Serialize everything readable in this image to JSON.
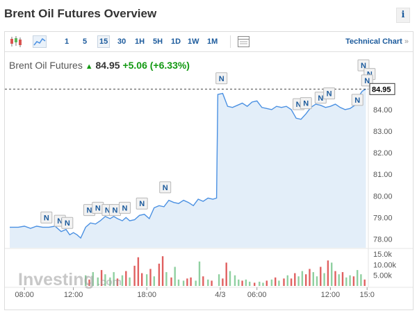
{
  "page_title": "Brent Oil Futures Overview",
  "info_label": "i",
  "toolbar": {
    "timeframes": [
      "1",
      "5",
      "15",
      "30",
      "1H",
      "5H",
      "1D",
      "1W",
      "1M"
    ],
    "active_timeframe": "15",
    "technical_chart_label": "Technical Chart",
    "technical_chart_arrow": "»"
  },
  "quote": {
    "name": "Brent Oil Futures",
    "price": "84.95",
    "change": "+5.06",
    "change_pct": "(+6.33%)"
  },
  "watermark": {
    "main": "Investing",
    "suffix": ".com"
  },
  "colors": {
    "line": "#4a90e2",
    "area": "#e3eef9",
    "up": "#8fd0a0",
    "down": "#e06060",
    "accent": "#1b5a9c"
  },
  "chart_data": {
    "type": "area",
    "y_axis": {
      "range": [
        77.6,
        85.7
      ],
      "ticks": [
        "78.00",
        "79.00",
        "80.00",
        "81.00",
        "82.00",
        "83.00",
        "84.00"
      ]
    },
    "last_price": 84.95,
    "last_price_label": "84.95",
    "x_labels": [
      {
        "label": "08:00",
        "t": 8
      },
      {
        "label": "12:00",
        "t": 12
      },
      {
        "label": "18:00",
        "t": 18
      },
      {
        "label": "4/3",
        "t": 24
      },
      {
        "label": "06:00",
        "t": 27
      },
      {
        "label": "12:00",
        "t": 33
      },
      {
        "label": "15:0",
        "t": 36
      }
    ],
    "price_series": [
      [
        6.8,
        78.55
      ],
      [
        7.5,
        78.55
      ],
      [
        8.0,
        78.6
      ],
      [
        8.5,
        78.5
      ],
      [
        9.0,
        78.6
      ],
      [
        9.5,
        78.55
      ],
      [
        10.0,
        78.55
      ],
      [
        10.5,
        78.6
      ],
      [
        11.0,
        78.35
      ],
      [
        11.4,
        78.45
      ],
      [
        11.7,
        78.2
      ],
      [
        12.0,
        78.3
      ],
      [
        12.3,
        78.2
      ],
      [
        12.6,
        78.05
      ],
      [
        13.0,
        78.55
      ],
      [
        13.4,
        78.75
      ],
      [
        13.8,
        78.7
      ],
      [
        14.2,
        78.85
      ],
      [
        14.6,
        79.05
      ],
      [
        15.0,
        78.95
      ],
      [
        15.3,
        79.05
      ],
      [
        15.6,
        78.95
      ],
      [
        16.0,
        78.85
      ],
      [
        16.3,
        79.0
      ],
      [
        16.6,
        78.85
      ],
      [
        17.0,
        78.9
      ],
      [
        17.4,
        79.1
      ],
      [
        17.8,
        79.15
      ],
      [
        18.2,
        78.95
      ],
      [
        18.6,
        79.45
      ],
      [
        19.0,
        79.55
      ],
      [
        19.4,
        79.5
      ],
      [
        19.8,
        79.8
      ],
      [
        20.2,
        79.7
      ],
      [
        20.6,
        79.65
      ],
      [
        21.0,
        79.8
      ],
      [
        21.4,
        79.7
      ],
      [
        21.8,
        79.55
      ],
      [
        22.2,
        79.85
      ],
      [
        22.6,
        79.75
      ],
      [
        23.0,
        79.9
      ],
      [
        23.4,
        79.85
      ],
      [
        23.7,
        79.9
      ],
      [
        23.8,
        84.7
      ],
      [
        24.2,
        84.75
      ],
      [
        24.6,
        84.15
      ],
      [
        25.0,
        84.1
      ],
      [
        25.4,
        84.2
      ],
      [
        25.8,
        84.3
      ],
      [
        26.2,
        84.15
      ],
      [
        26.6,
        84.35
      ],
      [
        27.0,
        84.4
      ],
      [
        27.4,
        84.1
      ],
      [
        27.8,
        84.05
      ],
      [
        28.2,
        84.0
      ],
      [
        28.6,
        84.15
      ],
      [
        29.0,
        84.1
      ],
      [
        29.4,
        84.15
      ],
      [
        29.8,
        84.0
      ],
      [
        30.2,
        83.6
      ],
      [
        30.6,
        83.55
      ],
      [
        31.0,
        83.8
      ],
      [
        31.4,
        84.1
      ],
      [
        31.8,
        84.25
      ],
      [
        32.2,
        84.2
      ],
      [
        32.6,
        84.1
      ],
      [
        33.0,
        84.15
      ],
      [
        33.4,
        84.25
      ],
      [
        33.8,
        84.1
      ],
      [
        34.2,
        84.0
      ],
      [
        34.6,
        84.05
      ],
      [
        35.0,
        84.2
      ],
      [
        35.3,
        84.6
      ],
      [
        35.6,
        84.85
      ],
      [
        35.9,
        84.95
      ]
    ],
    "volume_axis": {
      "range": [
        0,
        17000
      ],
      "ticks": [
        "15.0k",
        "10.00k",
        "5.00k"
      ],
      "tick_values": [
        15000,
        10000,
        5000
      ]
    },
    "volume_bars": [
      [
        13.0,
        5000,
        "up"
      ],
      [
        13.3,
        3000,
        "down"
      ],
      [
        13.6,
        6500,
        "up"
      ],
      [
        14.0,
        4000,
        "up"
      ],
      [
        14.3,
        7500,
        "down"
      ],
      [
        14.6,
        5500,
        "up"
      ],
      [
        15.0,
        4000,
        "up"
      ],
      [
        15.3,
        6500,
        "up"
      ],
      [
        15.6,
        3500,
        "down"
      ],
      [
        16.0,
        5000,
        "up"
      ],
      [
        16.3,
        7000,
        "down"
      ],
      [
        16.6,
        4000,
        "up"
      ],
      [
        17.0,
        9500,
        "down"
      ],
      [
        17.3,
        13500,
        "down"
      ],
      [
        17.6,
        6000,
        "down"
      ],
      [
        18.0,
        5500,
        "up"
      ],
      [
        18.3,
        8000,
        "down"
      ],
      [
        18.6,
        4500,
        "up"
      ],
      [
        19.0,
        10500,
        "down"
      ],
      [
        19.3,
        14000,
        "down"
      ],
      [
        19.6,
        6500,
        "up"
      ],
      [
        20.0,
        4000,
        "down"
      ],
      [
        20.3,
        9000,
        "up"
      ],
      [
        20.6,
        3000,
        "up"
      ],
      [
        21.0,
        2500,
        "up"
      ],
      [
        21.3,
        3500,
        "down"
      ],
      [
        21.6,
        4000,
        "down"
      ],
      [
        22.0,
        2500,
        "up"
      ],
      [
        22.3,
        11500,
        "up"
      ],
      [
        22.6,
        4500,
        "down"
      ],
      [
        23.0,
        3000,
        "up"
      ],
      [
        23.3,
        2500,
        "down"
      ],
      [
        23.9,
        5500,
        "up"
      ],
      [
        24.2,
        3500,
        "down"
      ],
      [
        24.5,
        11000,
        "down"
      ],
      [
        24.8,
        7000,
        "up"
      ],
      [
        25.2,
        5000,
        "up"
      ],
      [
        25.5,
        3000,
        "up"
      ],
      [
        25.8,
        2500,
        "down"
      ],
      [
        26.1,
        3000,
        "up"
      ],
      [
        26.4,
        2000,
        "up"
      ],
      [
        26.8,
        1500,
        "down"
      ],
      [
        27.2,
        2000,
        "up"
      ],
      [
        27.5,
        1500,
        "up"
      ],
      [
        27.8,
        2500,
        "down"
      ],
      [
        28.2,
        3000,
        "up"
      ],
      [
        28.5,
        4000,
        "down"
      ],
      [
        28.8,
        2500,
        "up"
      ],
      [
        29.2,
        3500,
        "down"
      ],
      [
        29.5,
        5000,
        "up"
      ],
      [
        29.8,
        3500,
        "down"
      ],
      [
        30.1,
        6000,
        "down"
      ],
      [
        30.4,
        4500,
        "up"
      ],
      [
        30.7,
        7000,
        "up"
      ],
      [
        31.0,
        5500,
        "down"
      ],
      [
        31.3,
        8000,
        "down"
      ],
      [
        31.6,
        6500,
        "up"
      ],
      [
        31.9,
        4500,
        "up"
      ],
      [
        32.2,
        9000,
        "down"
      ],
      [
        32.5,
        6000,
        "up"
      ],
      [
        32.8,
        12000,
        "down"
      ],
      [
        33.1,
        11000,
        "up"
      ],
      [
        33.4,
        7000,
        "down"
      ],
      [
        33.7,
        5500,
        "up"
      ],
      [
        34.0,
        6500,
        "down"
      ],
      [
        34.3,
        4000,
        "up"
      ],
      [
        34.6,
        5000,
        "up"
      ],
      [
        34.9,
        4500,
        "down"
      ],
      [
        35.2,
        7500,
        "up"
      ],
      [
        35.5,
        5500,
        "up"
      ],
      [
        35.8,
        3000,
        "down"
      ]
    ],
    "news_marker_label": "N",
    "news_markers": [
      [
        9.8,
        78.55
      ],
      [
        10.9,
        78.4
      ],
      [
        11.5,
        78.3
      ],
      [
        13.3,
        78.9
      ],
      [
        14.0,
        79.0
      ],
      [
        14.8,
        78.9
      ],
      [
        15.4,
        78.9
      ],
      [
        16.2,
        79.0
      ],
      [
        17.6,
        79.2
      ],
      [
        19.5,
        79.95
      ],
      [
        24.1,
        85.0
      ],
      [
        30.4,
        83.8
      ],
      [
        31.0,
        83.85
      ],
      [
        32.2,
        84.1
      ],
      [
        32.9,
        84.3
      ],
      [
        35.2,
        84.0
      ],
      [
        35.7,
        85.6
      ],
      [
        36.2,
        85.2
      ],
      [
        36.0,
        84.9
      ]
    ]
  }
}
